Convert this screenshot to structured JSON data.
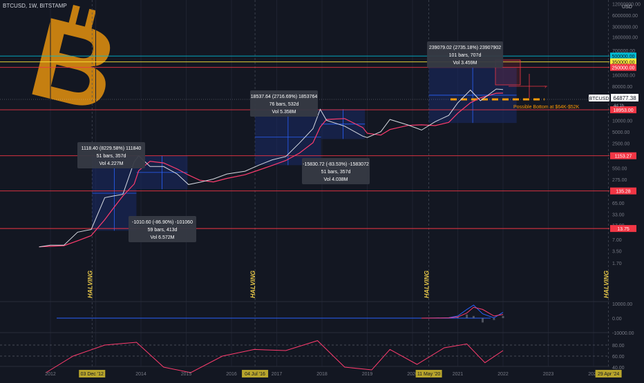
{
  "header": {
    "symbol": "BTCUSD, 1W, BITSTAMP",
    "currency": "USD"
  },
  "colors": {
    "background": "#131722",
    "candle": "#d8dbe2",
    "ma": "#ff3c6e",
    "level": "#f23645",
    "box": "#1a2a66",
    "measure": "#2962ff",
    "halving": "#e3c449",
    "orange": "#ff9800",
    "logo": "#d98b10",
    "macd": "#2962ff",
    "signal": "#ff3c6e",
    "rsi": "#ff3c6e"
  },
  "price_axis_labels": [
    "12000000.00",
    "6000000.00",
    "3000000.00",
    "1600000.00",
    "700000.00",
    "160000.00",
    "80000.00",
    "40000.00",
    "20000.00",
    "10000.00",
    "5000.00",
    "2500.00",
    "550.00",
    "275.00",
    "65.00",
    "33.00",
    "17.00",
    "7.00",
    "3.50",
    "1.70"
  ],
  "macd_axis_labels": [
    "10000.00",
    "0.00",
    "-10000.00"
  ],
  "rsi_axis_labels": [
    "80.00",
    "60.00",
    "40.00"
  ],
  "time_labels": [
    "2012",
    "2014",
    "2015",
    "2016",
    "2017",
    "2018",
    "2019",
    "2020",
    "2021",
    "2022",
    "2023",
    "2024"
  ],
  "date_badges": [
    "03 Dec '12",
    "04 Jul '16",
    "11 May '20",
    "29 Apr '24"
  ],
  "halving_label": "HALVING",
  "horizontal_levels": [
    {
      "price": "500000.00",
      "color": "#00bcd4",
      "text_color": "#131722"
    },
    {
      "price": "350000.00",
      "color": "#ffeb3b",
      "text_color": "#131722"
    },
    {
      "price": "250000.00",
      "color": "#f23645",
      "text_color": "#ffffff"
    },
    {
      "price": "18953.00",
      "color": "#f23645",
      "text_color": "#ffffff"
    },
    {
      "price": "1153.27",
      "color": "#f23645",
      "text_color": "#ffffff"
    },
    {
      "price": "135.28",
      "color": "#f23645",
      "text_color": "#ffffff"
    },
    {
      "price": "13.75",
      "color": "#f23645",
      "text_color": "#ffffff"
    }
  ],
  "current_price": {
    "ticker": "BTCUSD",
    "value": "64877.38",
    "countdown": "4d 1h"
  },
  "annotation_text": "Possible Bottom at $64K-$52K",
  "measurements": [
    {
      "line1": "1118.40 (8229.58%) 111840",
      "line2": "51 bars, 357d",
      "line3": "Vol 4.227M"
    },
    {
      "line1": "-1010.60 (-86.90%) -101060",
      "line2": "59 bars, 413d",
      "line3": "Vol 6.572M"
    },
    {
      "line1": "18537.64 (2716.69%) 1853764",
      "line2": "76 bars, 532d",
      "line3": "Vol 5.358M"
    },
    {
      "line1": "-15830.72 (-83.53%) -1583072",
      "line2": "51 bars, 357d",
      "line3": "Vol 4.038M"
    },
    {
      "line1": "239079.02 (2735.18%) 23907902",
      "line2": "101 bars, 707d",
      "line3": "Vol 3.459M"
    }
  ],
  "chart_data": [
    {
      "type": "line",
      "title": "BTCUSD, 1W, BITSTAMP",
      "scale": "log",
      "x": [
        2011.75,
        2012.0,
        2012.3,
        2012.6,
        2012.9,
        2013.2,
        2013.4,
        2013.6,
        2013.85,
        2013.95,
        2014.2,
        2014.5,
        2014.8,
        2015.05,
        2015.3,
        2015.6,
        2015.9,
        2016.3,
        2016.6,
        2016.9,
        2017.2,
        2017.5,
        2017.8,
        2017.96,
        2018.1,
        2018.5,
        2018.9,
        2019.0,
        2019.3,
        2019.5,
        2019.9,
        2020.2,
        2020.5,
        2020.8,
        2021.0,
        2021.28,
        2021.5,
        2021.85,
        2022.0
      ],
      "price": [
        4.5,
        5,
        5,
        11,
        13,
        90,
        100,
        110,
        800,
        1150,
        600,
        600,
        380,
        200,
        230,
        280,
        380,
        450,
        650,
        900,
        1100,
        2500,
        6000,
        19500,
        10000,
        7000,
        3800,
        3500,
        5000,
        10500,
        7500,
        5500,
        9200,
        13500,
        29000,
        63000,
        33000,
        67000,
        65000
      ],
      "ylabel": "USD",
      "ylim": [
        1.3,
        12000000
      ]
    },
    {
      "type": "line",
      "title": "MACD",
      "x": [
        2020.2,
        2020.5,
        2020.8,
        2021.0,
        2021.2,
        2021.35,
        2021.55,
        2021.8,
        2022.0
      ],
      "series": [
        {
          "values": [
            0,
            100,
            300,
            1500,
            6000,
            9000,
            3000,
            200,
            4000
          ]
        },
        {
          "values": [
            0,
            50,
            200,
            800,
            3500,
            7500,
            6000,
            1500,
            2500
          ]
        }
      ],
      "ylim": [
        -10000,
        10000
      ]
    },
    {
      "type": "line",
      "title": "RSI",
      "x": [
        2011.9,
        2012.5,
        2013.2,
        2013.9,
        2014.5,
        2015.1,
        2015.8,
        2016.5,
        2017.2,
        2017.9,
        2018.5,
        2019.1,
        2019.5,
        2020.1,
        2020.7,
        2021.2,
        2021.6,
        2022.0
      ],
      "values": [
        30,
        60,
        80,
        85,
        40,
        30,
        60,
        72,
        70,
        88,
        40,
        35,
        72,
        45,
        75,
        82,
        48,
        70
      ],
      "ylim": [
        30,
        90
      ]
    }
  ]
}
